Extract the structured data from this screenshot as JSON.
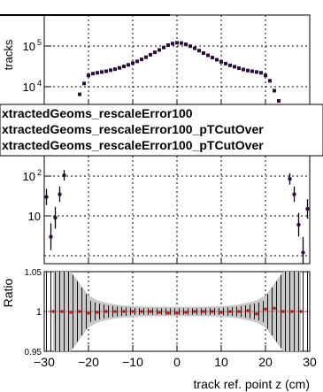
{
  "chart_data": {
    "type": "scatter",
    "title": "",
    "xlabel": "track ref. point z (cm)",
    "x_range": [
      -30,
      30
    ],
    "x_ticks": [
      -30,
      -20,
      -10,
      0,
      10,
      20,
      30
    ],
    "x_tick_labels": [
      "−30",
      "−20",
      "−10",
      "0",
      "10",
      "20",
      "30"
    ],
    "ylabel": "tracks",
    "y_scale": "log",
    "upper_y_visible_range": [
      1000,
      300000
    ],
    "upper_y_ticks": [
      {
        "value": 10000,
        "base": "10",
        "exp": "4"
      },
      {
        "value": 100000,
        "base": "10",
        "exp": "5"
      }
    ],
    "middle_y_ticks": [
      {
        "value": 10,
        "base": "10",
        "exp": ""
      },
      {
        "value": 100,
        "base": "10",
        "exp": "2"
      }
    ],
    "ratio_ylabel": "Ratio",
    "ratio_y_range": [
      0.95,
      1.05
    ],
    "ratio_y_tick_labels": [
      "1.05",
      "1",
      "0.95"
    ],
    "grid": true,
    "legend": {
      "placement": "middle",
      "entries": [
        "xtractedGeoms_rescaleError100",
        "xtractedGeoms_rescaleError100_pTCutOver",
        "xtractedGeoms_rescaleError100_pTCutOver"
      ]
    },
    "colors": {
      "marker": "#2b0f3f",
      "reference": "#c4161c",
      "band": "#c8c8c8",
      "grid": "#000000"
    },
    "series": [
      {
        "marker": "square",
        "x": [
          -25,
          -24,
          -23,
          -22,
          -21,
          -20,
          -19,
          -18,
          -17,
          -16,
          -15,
          -14,
          -13,
          -12,
          -11,
          -10,
          -9,
          -8,
          -7,
          -6,
          -5,
          -4,
          -3,
          -2,
          -1,
          0,
          1,
          2,
          3,
          4,
          5,
          6,
          7,
          8,
          9,
          10,
          11,
          12,
          13,
          14,
          15,
          16,
          17,
          18,
          19,
          20,
          21,
          22,
          23,
          24,
          25
        ],
        "y": [
          1000,
          2000,
          3500,
          6500,
          12000,
          19000,
          21000,
          22000,
          23000,
          24000,
          25500,
          27000,
          29000,
          31500,
          34500,
          38000,
          42000,
          47000,
          53000,
          61000,
          70000,
          80000,
          92000,
          105000,
          115000,
          120000,
          118000,
          110000,
          99000,
          88000,
          77000,
          67000,
          59000,
          52000,
          46000,
          41000,
          37000,
          33500,
          31000,
          28500,
          26500,
          25000,
          24000,
          23000,
          22000,
          19000,
          14000,
          8000,
          4500,
          2300,
          1200
        ]
      },
      {
        "marker": "circle-errorbar",
        "x": [
          -29.5,
          -28.5,
          -27.5,
          -26.5,
          -25.5,
          25.5,
          26.5,
          27.5,
          28.5,
          29.5
        ],
        "y": [
          30,
          3,
          9,
          35,
          105,
          85,
          35,
          6,
          1.2,
          15
        ]
      }
    ],
    "ratio_points": {
      "x": [
        -28,
        -26,
        -24,
        -22,
        -20,
        -18,
        -16,
        -14,
        -12,
        -10,
        -8,
        -6,
        -4,
        -2,
        0,
        2,
        4,
        6,
        8,
        10,
        12,
        14,
        16,
        18,
        20,
        22,
        24,
        26,
        28
      ],
      "y": [
        1.0,
        1.0,
        0.999,
        1.0,
        0.998,
        0.999,
        1.0,
        1.0,
        1.0,
        1.0,
        1.0,
        1.0,
        0.999,
        0.998,
        0.998,
        0.999,
        1.0,
        1.0,
        1.0,
        0.999,
        1.0,
        1.0,
        1.001,
        0.997,
        1.003,
        1.004,
        1.0,
        1.0,
        1.0
      ]
    }
  }
}
